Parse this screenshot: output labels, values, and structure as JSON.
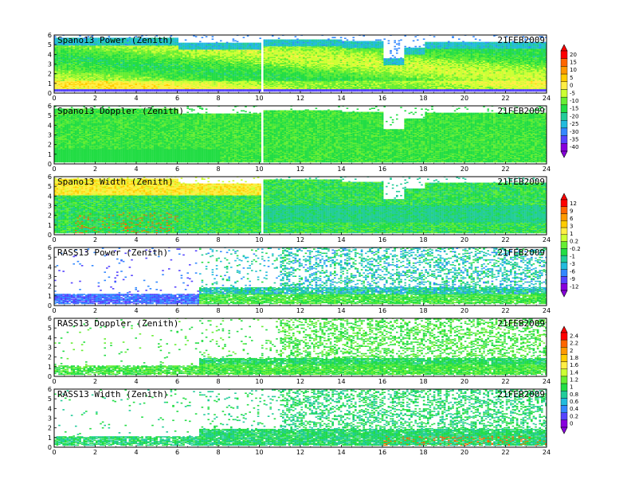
{
  "figure": {
    "date_label": "21FEB2009",
    "x_ticks": [
      "0",
      "2",
      "4",
      "6",
      "8",
      "10",
      "12",
      "14",
      "16",
      "18",
      "20",
      "22",
      "24"
    ],
    "y_ticks": [
      "0",
      "1",
      "2",
      "3",
      "4",
      "5",
      "6"
    ]
  },
  "chart_data": [
    {
      "type": "heatmap",
      "title": "Spano13 Power (Zenith)",
      "date": "21FEB2009",
      "xlim": [
        0,
        24
      ],
      "ylim": [
        0,
        6
      ],
      "variant": "power",
      "colorbar": 0
    },
    {
      "type": "heatmap",
      "title": "Spano13 Doppler (Zenith)",
      "date": "21FEB2009",
      "xlim": [
        0,
        24
      ],
      "ylim": [
        0,
        6
      ],
      "variant": "doppler",
      "colorbar": 0
    },
    {
      "type": "heatmap",
      "title": "Spano13 Width (Zenith)",
      "date": "21FEB2009",
      "xlim": [
        0,
        24
      ],
      "ylim": [
        0,
        6
      ],
      "variant": "width",
      "colorbar": 1
    },
    {
      "type": "heatmap",
      "title": "RASS13 Power (Zenith)",
      "date": "21FEB2009",
      "xlim": [
        0,
        24
      ],
      "ylim": [
        0,
        6
      ],
      "variant": "rass_power",
      "colorbar": 1
    },
    {
      "type": "heatmap",
      "title": "RASS13 Doppler (Zenith)",
      "date": "21FEB2009",
      "xlim": [
        0,
        24
      ],
      "ylim": [
        0,
        6
      ],
      "variant": "rass_doppler",
      "colorbar": 2
    },
    {
      "type": "heatmap",
      "title": "RASS13 Width (Zenith)",
      "date": "21FEB2009",
      "xlim": [
        0,
        24
      ],
      "ylim": [
        0,
        6
      ],
      "variant": "rass_width",
      "colorbar": 2
    }
  ],
  "colorbars": [
    {
      "labels": [
        "20",
        "15",
        "10",
        "5",
        "0",
        "-5",
        "-10",
        "-15",
        "-20",
        "-25",
        "-30",
        "-35",
        "-40"
      ],
      "colors": [
        "#ff0000",
        "#ff6600",
        "#ff9900",
        "#ffcc00",
        "#ffee44",
        "#ccff33",
        "#66ee33",
        "#22dd44",
        "#22cc99",
        "#22bbdd",
        "#3388ff",
        "#5544ff",
        "#8800dd"
      ]
    },
    {
      "labels": [
        "12",
        "9",
        "6",
        "3",
        "1",
        "0.2",
        "-0.2",
        "-1",
        "-3",
        "-6",
        "-9",
        "-12"
      ],
      "colors": [
        "#ff0000",
        "#ff6600",
        "#ff9900",
        "#ffcc00",
        "#ffee44",
        "#ccff33",
        "#66ee33",
        "#22dd44",
        "#22cc99",
        "#22bbdd",
        "#3388ff",
        "#5544ff",
        "#8800dd"
      ]
    },
    {
      "labels": [
        "2.4",
        "2.2",
        "2",
        "1.8",
        "1.6",
        "1.4",
        "1.2",
        "1",
        "0.8",
        "0.6",
        "0.4",
        "0.2",
        "0"
      ],
      "colors": [
        "#ff0000",
        "#ff6600",
        "#ff9900",
        "#ffcc00",
        "#ffee44",
        "#ccff33",
        "#66ee33",
        "#22dd44",
        "#22cc99",
        "#22bbdd",
        "#3388ff",
        "#5544ff",
        "#8800dd"
      ]
    }
  ]
}
